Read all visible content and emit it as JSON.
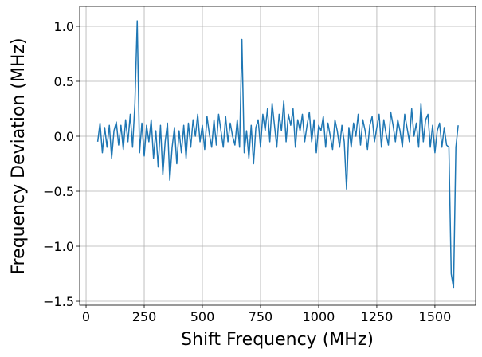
{
  "chart_data": {
    "type": "line",
    "x_label": "Shift Frequency (MHz)",
    "y_label": "Frequency Deviation (MHz)",
    "x": [
      50,
      60,
      70,
      80,
      90,
      100,
      110,
      120,
      130,
      140,
      150,
      160,
      170,
      180,
      190,
      200,
      210,
      220,
      230,
      240,
      250,
      260,
      270,
      280,
      290,
      300,
      310,
      320,
      330,
      340,
      350,
      360,
      370,
      380,
      390,
      400,
      410,
      420,
      430,
      440,
      450,
      460,
      470,
      480,
      490,
      500,
      510,
      520,
      530,
      540,
      550,
      560,
      570,
      580,
      590,
      600,
      610,
      620,
      630,
      640,
      650,
      660,
      670,
      680,
      690,
      700,
      710,
      720,
      730,
      740,
      750,
      760,
      770,
      780,
      790,
      800,
      810,
      820,
      830,
      840,
      850,
      860,
      870,
      880,
      890,
      900,
      910,
      920,
      930,
      940,
      950,
      960,
      970,
      980,
      990,
      1000,
      1010,
      1020,
      1030,
      1040,
      1050,
      1060,
      1070,
      1080,
      1090,
      1100,
      1110,
      1120,
      1130,
      1140,
      1150,
      1160,
      1170,
      1180,
      1190,
      1200,
      1210,
      1220,
      1230,
      1240,
      1250,
      1260,
      1270,
      1280,
      1290,
      1300,
      1310,
      1320,
      1330,
      1340,
      1350,
      1360,
      1370,
      1380,
      1390,
      1400,
      1410,
      1420,
      1430,
      1440,
      1450,
      1460,
      1470,
      1480,
      1490,
      1500,
      1510,
      1520,
      1530,
      1540,
      1550,
      1560,
      1570,
      1580,
      1590,
      1600
    ],
    "values": [
      -0.05,
      0.12,
      -0.15,
      0.08,
      -0.1,
      0.1,
      -0.2,
      0.05,
      0.13,
      -0.08,
      0.1,
      -0.12,
      0.15,
      -0.05,
      0.2,
      -0.1,
      0.3,
      1.05,
      -0.15,
      0.12,
      -0.18,
      0.1,
      -0.05,
      0.15,
      -0.2,
      0.05,
      -0.28,
      0.1,
      -0.35,
      -0.05,
      0.12,
      -0.4,
      -0.1,
      0.08,
      -0.25,
      0.05,
      -0.15,
      0.1,
      -0.2,
      0.12,
      -0.1,
      0.15,
      0.0,
      0.2,
      -0.05,
      0.1,
      -0.12,
      0.18,
      0.02,
      -0.1,
      0.15,
      -0.08,
      0.2,
      0.05,
      -0.1,
      0.18,
      -0.05,
      0.12,
      0.0,
      -0.08,
      0.15,
      -0.1,
      0.88,
      -0.15,
      0.05,
      -0.2,
      0.1,
      -0.25,
      0.08,
      0.15,
      -0.1,
      0.2,
      0.05,
      0.25,
      -0.05,
      0.3,
      0.1,
      -0.1,
      0.2,
      0.05,
      0.32,
      -0.05,
      0.2,
      0.1,
      0.25,
      -0.1,
      0.15,
      0.05,
      0.2,
      -0.05,
      0.1,
      0.22,
      -0.05,
      0.15,
      -0.15,
      0.1,
      0.05,
      0.18,
      -0.1,
      0.12,
      0.0,
      -0.12,
      0.15,
      0.05,
      -0.1,
      0.1,
      -0.05,
      -0.48,
      0.08,
      -0.1,
      0.12,
      0.0,
      0.2,
      -0.08,
      0.15,
      0.05,
      -0.12,
      0.1,
      0.18,
      -0.05,
      0.08,
      0.2,
      -0.1,
      0.15,
      0.02,
      -0.08,
      0.22,
      0.1,
      -0.05,
      0.15,
      0.05,
      -0.1,
      0.2,
      0.08,
      -0.05,
      0.25,
      0.0,
      0.12,
      -0.1,
      0.3,
      -0.05,
      0.15,
      0.2,
      -0.1,
      0.1,
      -0.15,
      0.05,
      0.12,
      -0.1,
      0.08,
      -0.08,
      -0.1,
      -1.25,
      -1.38,
      -0.1,
      0.1
    ],
    "color": "#1f77b4",
    "xlim": [
      -27.5,
      1675
    ],
    "ylim": [
      -1.536,
      1.181
    ],
    "xticks": [
      0,
      250,
      500,
      750,
      1000,
      1250,
      1500
    ],
    "yticks": [
      {
        "value": 1.0,
        "label": "1.0"
      },
      {
        "value": 0.5,
        "label": "0.5"
      },
      {
        "value": 0.0,
        "label": "0.0"
      },
      {
        "value": -0.5,
        "label": "−0.5"
      },
      {
        "value": -1.0,
        "label": "−1.0"
      },
      {
        "value": -1.5,
        "label": "−1.5"
      }
    ],
    "grid": true
  }
}
